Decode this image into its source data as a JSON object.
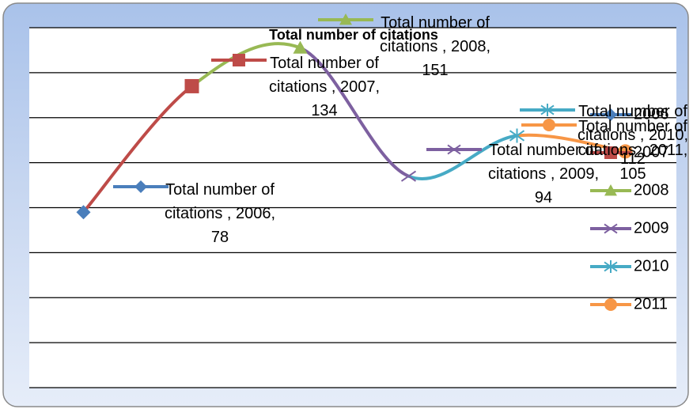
{
  "chart_data": {
    "type": "line",
    "title": "Total number of citations",
    "categories": [
      "2006",
      "2007",
      "2008",
      "2009",
      "2010",
      "2011"
    ],
    "series": [
      {
        "name": "Total number of citations",
        "values": [
          78,
          134,
          151,
          94,
          112,
          105
        ],
        "value_labels": [
          "Total number of citations , 2006, 78",
          "Total number of citations , 2007, 134",
          "Total number of citations , 2008, 151",
          "Total number of citations , 2009, 94",
          "Total number of citations , 2010, 112",
          "Total number of citations , 2011, 105"
        ],
        "colors": [
          "#4a7ebb",
          "#be4b48",
          "#98b954",
          "#7d60a0",
          "#46aac5",
          "#f79646"
        ]
      }
    ],
    "ylim": [
      0,
      160
    ],
    "yticks": [
      0,
      20,
      40,
      60,
      80,
      100,
      120,
      140,
      160
    ],
    "grid": true,
    "smooth": true,
    "legend": "right"
  }
}
